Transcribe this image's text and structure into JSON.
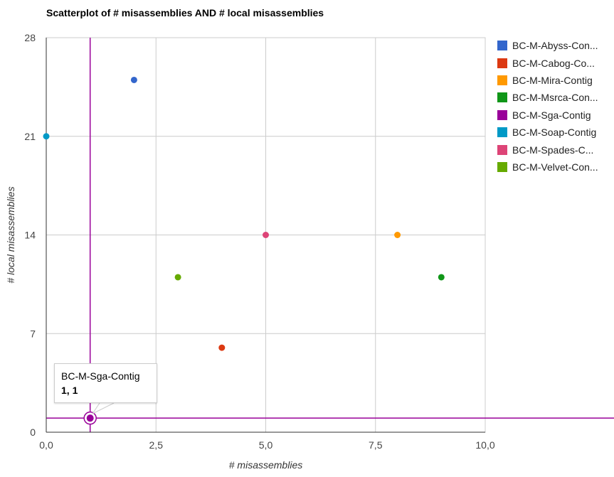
{
  "chart_data": {
    "type": "scatter",
    "title": "Scatterplot of # misassemblies AND # local misassemblies",
    "xlabel": "# misassemblies",
    "ylabel": "# local misassemblies",
    "xlim": [
      0,
      10
    ],
    "ylim": [
      0,
      28
    ],
    "x_ticks": [
      "0,0",
      "2,5",
      "5,0",
      "7,5",
      "10,0"
    ],
    "x_tick_values": [
      0,
      2.5,
      5,
      7.5,
      10
    ],
    "y_ticks": [
      "0",
      "7",
      "14",
      "21",
      "28"
    ],
    "y_tick_values": [
      0,
      7,
      14,
      21,
      28
    ],
    "grid": true,
    "legend_position": "right",
    "series": [
      {
        "name": "BC-M-Abyss-Con...",
        "color": "#3366cc",
        "points": [
          [
            2,
            25
          ]
        ]
      },
      {
        "name": "BC-M-Cabog-Co...",
        "color": "#dc3912",
        "points": [
          [
            4,
            6
          ]
        ]
      },
      {
        "name": "BC-M-Mira-Contig",
        "color": "#ff9900",
        "points": [
          [
            8,
            14
          ]
        ]
      },
      {
        "name": "BC-M-Msrca-Con...",
        "color": "#109618",
        "points": [
          [
            9,
            11
          ]
        ]
      },
      {
        "name": "BC-M-Sga-Contig",
        "color": "#990099",
        "points": [
          [
            1,
            1
          ]
        ]
      },
      {
        "name": "BC-M-Soap-Contig",
        "color": "#0099c6",
        "points": [
          [
            0,
            21
          ]
        ]
      },
      {
        "name": "BC-M-Spades-C...",
        "color": "#dd4477",
        "points": [
          [
            5,
            14
          ]
        ]
      },
      {
        "name": "BC-M-Velvet-Con...",
        "color": "#66aa00",
        "points": [
          [
            3,
            11
          ]
        ]
      }
    ],
    "highlight": {
      "series_index": 4,
      "crosshair": true
    }
  },
  "tooltip": {
    "series": "BC-M-Sga-Contig",
    "value": "1, 1"
  }
}
